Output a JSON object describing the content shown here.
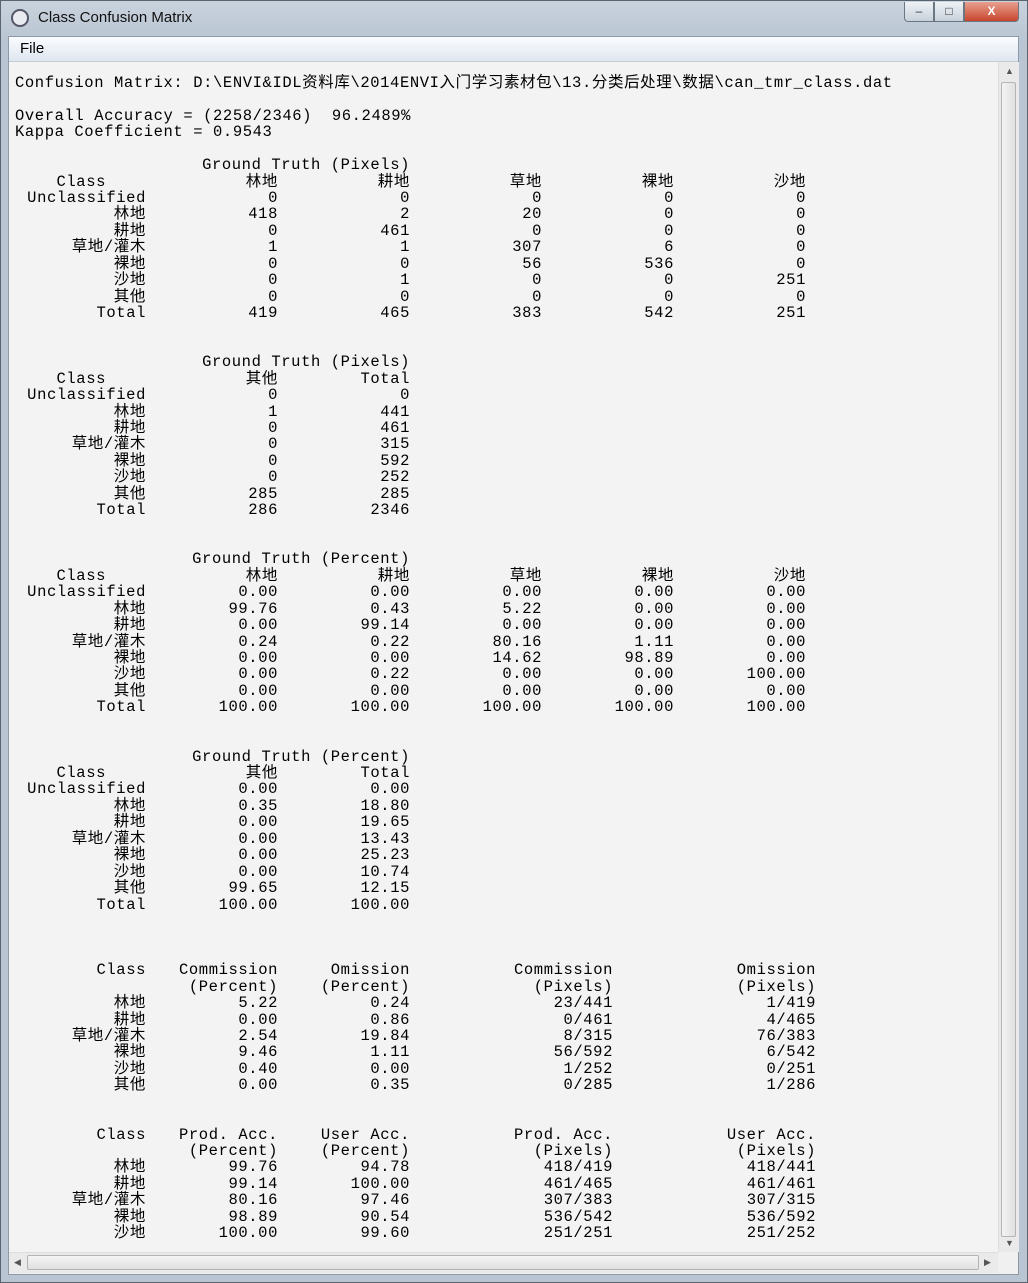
{
  "window": {
    "title": "Class Confusion Matrix",
    "minimize": "–",
    "maximize": "□",
    "close": "X"
  },
  "menu": {
    "file": "File"
  },
  "report": {
    "path_line": "Confusion Matrix: D:\\ENVI&IDL资料库\\2014ENVI入门学习素材包\\13.分类后处理\\数据\\can_tmr_class.dat",
    "overall_accuracy": "Overall Accuracy = (2258/2346)  96.2489%",
    "kappa": "Kappa Coefficient = 0.9543"
  },
  "matrices": [
    {
      "title": "Ground Truth (Pixels)",
      "class_header": "Class",
      "columns": [
        "林地",
        "耕地",
        "草地",
        "裸地",
        "沙地"
      ],
      "rows": [
        {
          "label": "Unclassified",
          "values": [
            "0",
            "0",
            "0",
            "0",
            "0"
          ]
        },
        {
          "label": "林地",
          "values": [
            "418",
            "2",
            "20",
            "0",
            "0"
          ]
        },
        {
          "label": "耕地",
          "values": [
            "0",
            "461",
            "0",
            "0",
            "0"
          ]
        },
        {
          "label": "草地/灌木",
          "values": [
            "1",
            "1",
            "307",
            "6",
            "0"
          ]
        },
        {
          "label": "裸地",
          "values": [
            "0",
            "0",
            "56",
            "536",
            "0"
          ]
        },
        {
          "label": "沙地",
          "values": [
            "0",
            "1",
            "0",
            "0",
            "251"
          ]
        },
        {
          "label": "其他",
          "values": [
            "0",
            "0",
            "0",
            "0",
            "0"
          ]
        },
        {
          "label": "Total",
          "values": [
            "419",
            "465",
            "383",
            "542",
            "251"
          ]
        }
      ]
    },
    {
      "title": "Ground Truth (Pixels)",
      "class_header": "Class",
      "columns": [
        "其他",
        "Total"
      ],
      "rows": [
        {
          "label": "Unclassified",
          "values": [
            "0",
            "0"
          ]
        },
        {
          "label": "林地",
          "values": [
            "1",
            "441"
          ]
        },
        {
          "label": "耕地",
          "values": [
            "0",
            "461"
          ]
        },
        {
          "label": "草地/灌木",
          "values": [
            "0",
            "315"
          ]
        },
        {
          "label": "裸地",
          "values": [
            "0",
            "592"
          ]
        },
        {
          "label": "沙地",
          "values": [
            "0",
            "252"
          ]
        },
        {
          "label": "其他",
          "values": [
            "285",
            "285"
          ]
        },
        {
          "label": "Total",
          "values": [
            "286",
            "2346"
          ]
        }
      ]
    },
    {
      "title": "Ground Truth (Percent)",
      "class_header": "Class",
      "columns": [
        "林地",
        "耕地",
        "草地",
        "裸地",
        "沙地"
      ],
      "rows": [
        {
          "label": "Unclassified",
          "values": [
            "0.00",
            "0.00",
            "0.00",
            "0.00",
            "0.00"
          ]
        },
        {
          "label": "林地",
          "values": [
            "99.76",
            "0.43",
            "5.22",
            "0.00",
            "0.00"
          ]
        },
        {
          "label": "耕地",
          "values": [
            "0.00",
            "99.14",
            "0.00",
            "0.00",
            "0.00"
          ]
        },
        {
          "label": "草地/灌木",
          "values": [
            "0.24",
            "0.22",
            "80.16",
            "1.11",
            "0.00"
          ]
        },
        {
          "label": "裸地",
          "values": [
            "0.00",
            "0.00",
            "14.62",
            "98.89",
            "0.00"
          ]
        },
        {
          "label": "沙地",
          "values": [
            "0.00",
            "0.22",
            "0.00",
            "0.00",
            "100.00"
          ]
        },
        {
          "label": "其他",
          "values": [
            "0.00",
            "0.00",
            "0.00",
            "0.00",
            "0.00"
          ]
        },
        {
          "label": "Total",
          "values": [
            "100.00",
            "100.00",
            "100.00",
            "100.00",
            "100.00"
          ]
        }
      ]
    },
    {
      "title": "Ground Truth (Percent)",
      "class_header": "Class",
      "columns": [
        "其他",
        "Total"
      ],
      "rows": [
        {
          "label": "Unclassified",
          "values": [
            "0.00",
            "0.00"
          ]
        },
        {
          "label": "林地",
          "values": [
            "0.35",
            "18.80"
          ]
        },
        {
          "label": "耕地",
          "values": [
            "0.00",
            "19.65"
          ]
        },
        {
          "label": "草地/灌木",
          "values": [
            "0.00",
            "13.43"
          ]
        },
        {
          "label": "裸地",
          "values": [
            "0.00",
            "25.23"
          ]
        },
        {
          "label": "沙地",
          "values": [
            "0.00",
            "10.74"
          ]
        },
        {
          "label": "其他",
          "values": [
            "99.65",
            "12.15"
          ]
        },
        {
          "label": "Total",
          "values": [
            "100.00",
            "100.00"
          ]
        }
      ]
    }
  ],
  "accuracy_tables": [
    {
      "class_header": "Class",
      "header1": [
        "Commission",
        "Omission",
        "Commission",
        "Omission"
      ],
      "header2": [
        "(Percent)",
        "(Percent)",
        "(Pixels)",
        "(Pixels)"
      ],
      "rows": [
        {
          "label": "林地",
          "values": [
            "5.22",
            "0.24",
            "23/441",
            "1/419"
          ]
        },
        {
          "label": "耕地",
          "values": [
            "0.00",
            "0.86",
            "0/461",
            "4/465"
          ]
        },
        {
          "label": "草地/灌木",
          "values": [
            "2.54",
            "19.84",
            "8/315",
            "76/383"
          ]
        },
        {
          "label": "裸地",
          "values": [
            "9.46",
            "1.11",
            "56/592",
            "6/542"
          ]
        },
        {
          "label": "沙地",
          "values": [
            "0.40",
            "0.00",
            "1/252",
            "0/251"
          ]
        },
        {
          "label": "其他",
          "values": [
            "0.00",
            "0.35",
            "0/285",
            "1/286"
          ]
        }
      ]
    },
    {
      "class_header": "Class",
      "header1": [
        "Prod. Acc.",
        "User Acc.",
        "Prod. Acc.",
        "User Acc."
      ],
      "header2": [
        "(Percent)",
        "(Percent)",
        "(Pixels)",
        "(Pixels)"
      ],
      "rows": [
        {
          "label": "林地",
          "values": [
            "99.76",
            "94.78",
            "418/419",
            "418/441"
          ]
        },
        {
          "label": "耕地",
          "values": [
            "99.14",
            "100.00",
            "461/465",
            "461/461"
          ]
        },
        {
          "label": "草地/灌木",
          "values": [
            "80.16",
            "97.46",
            "307/383",
            "307/315"
          ]
        },
        {
          "label": "裸地",
          "values": [
            "98.89",
            "90.54",
            "536/542",
            "536/592"
          ]
        },
        {
          "label": "沙地",
          "values": [
            "100.00",
            "99.60",
            "251/251",
            "251/252"
          ]
        }
      ]
    }
  ]
}
